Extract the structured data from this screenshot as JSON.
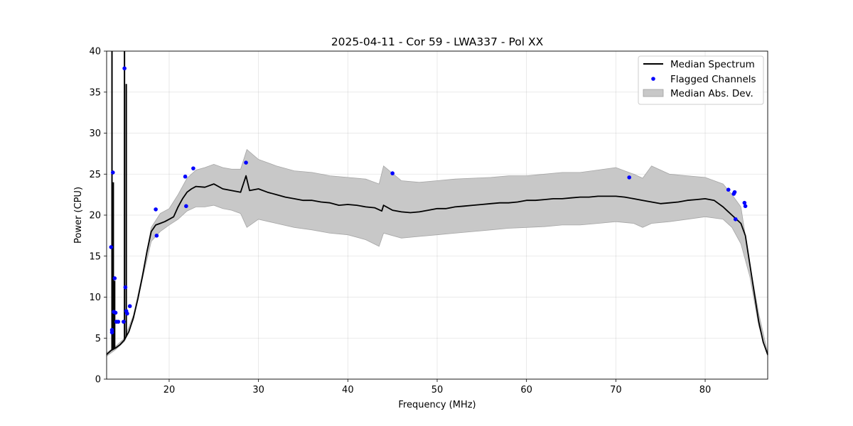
{
  "chart_data": {
    "type": "line",
    "title": "2025-04-11 - Cor 59 - LWA337 - Pol XX",
    "xlabel": "Frequency (MHz)",
    "ylabel": "Power (CPU)",
    "xlim": [
      13,
      87
    ],
    "ylim": [
      0,
      40
    ],
    "xticks": [
      20,
      30,
      40,
      50,
      60,
      70,
      80
    ],
    "yticks": [
      0,
      5,
      10,
      15,
      20,
      25,
      30,
      35,
      40
    ],
    "grid": true,
    "legend_position": "upper-right",
    "legend": [
      {
        "label": "Median Spectrum",
        "kind": "line",
        "color": "#000000"
      },
      {
        "label": "Flagged Channels",
        "kind": "marker",
        "color": "#0000ff"
      },
      {
        "label": "Median Abs. Dev.",
        "kind": "patch",
        "color": "#c8c8c8"
      }
    ],
    "series": [
      {
        "name": "Median Spectrum",
        "kind": "line",
        "color": "#000000",
        "x": [
          13.0,
          13.5,
          14.0,
          14.5,
          15.0,
          15.5,
          16.0,
          16.5,
          17.0,
          17.5,
          18.0,
          18.5,
          19.0,
          19.5,
          20.0,
          20.5,
          21.0,
          21.5,
          22.0,
          22.5,
          23.0,
          24.0,
          25.0,
          26.0,
          27.0,
          28.0,
          28.6,
          29.0,
          30.0,
          31.0,
          32.0,
          33.0,
          34.0,
          35.0,
          36.0,
          37.0,
          38.0,
          39.0,
          40.0,
          41.0,
          42.0,
          43.0,
          43.8,
          44.0,
          45.0,
          46.0,
          47.0,
          48.0,
          49.0,
          50.0,
          51.0,
          52.0,
          53.0,
          54.0,
          55.0,
          56.0,
          57.0,
          58.0,
          59.0,
          60.0,
          61.0,
          62.0,
          63.0,
          64.0,
          65.0,
          66.0,
          67.0,
          68.0,
          69.0,
          70.0,
          71.0,
          72.0,
          73.0,
          74.0,
          75.0,
          76.0,
          77.0,
          78.0,
          79.0,
          80.0,
          81.0,
          82.0,
          82.5,
          83.0,
          83.5,
          84.0,
          84.5,
          85.0,
          85.5,
          86.0,
          86.5,
          87.0
        ],
        "y": [
          3.0,
          3.5,
          3.8,
          4.2,
          4.8,
          5.8,
          7.5,
          9.8,
          12.5,
          15.5,
          18.0,
          18.8,
          19.0,
          19.2,
          19.5,
          19.8,
          21.0,
          22.0,
          22.8,
          23.2,
          23.5,
          23.4,
          23.8,
          23.2,
          23.0,
          22.8,
          24.8,
          23.0,
          23.2,
          22.8,
          22.5,
          22.2,
          22.0,
          21.8,
          21.8,
          21.6,
          21.5,
          21.2,
          21.3,
          21.2,
          21.0,
          20.9,
          20.5,
          21.2,
          20.6,
          20.4,
          20.3,
          20.4,
          20.6,
          20.8,
          20.8,
          21.0,
          21.1,
          21.2,
          21.3,
          21.4,
          21.5,
          21.5,
          21.6,
          21.8,
          21.8,
          21.9,
          22.0,
          22.0,
          22.1,
          22.2,
          22.2,
          22.3,
          22.3,
          22.3,
          22.2,
          22.0,
          21.8,
          21.6,
          21.4,
          21.5,
          21.6,
          21.8,
          21.9,
          22.0,
          21.8,
          21.0,
          20.5,
          20.0,
          19.5,
          19.0,
          17.5,
          14.0,
          10.5,
          7.0,
          4.5,
          3.0
        ]
      },
      {
        "name": "Median Abs. Dev.",
        "kind": "band",
        "color": "#c8c8c8",
        "x": [
          13.0,
          14.0,
          15.0,
          16.0,
          17.0,
          18.0,
          19.0,
          20.0,
          21.0,
          22.0,
          23.0,
          24.0,
          25.0,
          26.0,
          27.0,
          28.0,
          28.7,
          30.0,
          32.0,
          34.0,
          36.0,
          38.0,
          40.0,
          42.0,
          43.5,
          44.0,
          46.0,
          48.0,
          50.0,
          52.0,
          54.0,
          56.0,
          58.0,
          60.0,
          62.0,
          64.0,
          66.0,
          68.0,
          70.0,
          72.0,
          73.0,
          74.0,
          76.0,
          78.0,
          80.0,
          82.0,
          83.0,
          84.0,
          85.0,
          86.0,
          87.0
        ],
        "lower": [
          2.8,
          3.6,
          4.6,
          7.2,
          12.2,
          16.8,
          18.0,
          18.8,
          19.5,
          20.5,
          21.0,
          21.0,
          21.2,
          20.8,
          20.6,
          20.2,
          18.5,
          19.5,
          19.0,
          18.5,
          18.2,
          17.8,
          17.6,
          17.0,
          16.2,
          17.8,
          17.2,
          17.4,
          17.6,
          17.8,
          18.0,
          18.2,
          18.4,
          18.5,
          18.6,
          18.8,
          18.8,
          19.0,
          19.2,
          19.0,
          18.5,
          19.0,
          19.2,
          19.5,
          19.8,
          19.5,
          18.5,
          16.5,
          12.5,
          6.5,
          2.8
        ],
        "upper": [
          3.2,
          4.0,
          5.0,
          7.8,
          12.8,
          18.5,
          20.2,
          20.8,
          22.5,
          24.5,
          25.5,
          25.8,
          26.2,
          25.8,
          25.6,
          25.6,
          28.0,
          26.8,
          26.0,
          25.4,
          25.2,
          24.8,
          24.6,
          24.4,
          23.8,
          26.0,
          24.2,
          24.0,
          24.2,
          24.4,
          24.5,
          24.6,
          24.8,
          24.8,
          25.0,
          25.2,
          25.2,
          25.5,
          25.8,
          25.0,
          24.5,
          26.0,
          25.0,
          24.8,
          24.6,
          23.8,
          22.5,
          21.0,
          14.0,
          8.0,
          3.2
        ]
      },
      {
        "name": "Flagged Channels",
        "kind": "scatter",
        "color": "#0000ff",
        "x": [
          13.5,
          13.6,
          13.6,
          13.7,
          13.8,
          13.9,
          14.0,
          14.1,
          14.3,
          14.9,
          15.0,
          15.1,
          15.2,
          15.3,
          15.6,
          18.5,
          18.6,
          21.8,
          21.9,
          22.7,
          28.6,
          45.0,
          71.5,
          82.6,
          83.2,
          83.3,
          83.4,
          84.4,
          84.5
        ],
        "y": [
          16.1,
          6.0,
          5.7,
          25.2,
          8.2,
          12.3,
          8.1,
          7.0,
          7.0,
          7.0,
          37.9,
          11.2,
          8.3,
          8.0,
          8.9,
          20.7,
          17.5,
          24.7,
          21.1,
          25.7,
          26.4,
          25.1,
          24.6,
          23.1,
          22.6,
          22.8,
          19.5,
          21.5,
          21.1
        ]
      }
    ]
  }
}
